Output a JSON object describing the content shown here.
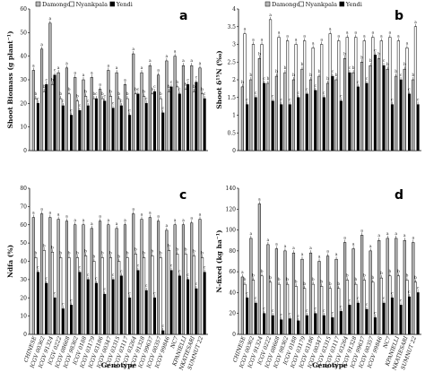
{
  "colors": {
    "Damongo": "#b9b9b9",
    "Nyankpala": "#ffffff",
    "Yendi": "#000000"
  },
  "chart_data": [
    {
      "type": "bar",
      "panel": "a",
      "ylabel": "Shoot Biomass (g plant⁻¹)",
      "xlabel": "",
      "yticks": [
        "0",
        "10",
        "20",
        "30",
        "40",
        "50",
        "60"
      ],
      "ylim": [
        0,
        60
      ],
      "legend": [
        "Damongo",
        "Nyankpala",
        "Yendi"
      ],
      "legend_placement": "top-left",
      "series": [
        {
          "name": "Damongo",
          "values": [
            34,
            43,
            54,
            33,
            35,
            31,
            30,
            31,
            26,
            34,
            33,
            28,
            41,
            33,
            36,
            32,
            38,
            40,
            36,
            36,
            35
          ]
        },
        {
          "name": "Nyankpala",
          "values": [
            22,
            25,
            28,
            22,
            24,
            21,
            23,
            22,
            22,
            23,
            22,
            22,
            24,
            23,
            24,
            22,
            25,
            27,
            26,
            25,
            24
          ]
        },
        {
          "name": "Yendi",
          "values": [
            20,
            28,
            32,
            19,
            15,
            17,
            19,
            22,
            21,
            18,
            19,
            15,
            24,
            20,
            25,
            16,
            27,
            24,
            28,
            29,
            22
          ]
        }
      ],
      "significance": [
        [
          "a",
          "b",
          "c"
        ],
        [
          "a",
          "b",
          "c"
        ],
        [
          "a",
          "b",
          "c"
        ],
        [
          "a",
          "b",
          "c"
        ],
        [
          "a",
          "b",
          "c"
        ],
        [
          "a",
          "b",
          "c"
        ],
        [
          "a",
          "b",
          "c"
        ],
        [
          "a",
          "b",
          "c"
        ],
        [
          "a",
          "b",
          "c"
        ],
        [
          "a",
          "b",
          "c"
        ],
        [
          "a",
          "b",
          "c"
        ],
        [
          "a",
          "b",
          "c"
        ],
        [
          "a",
          "b",
          "c"
        ],
        [
          "a",
          "b",
          "c"
        ],
        [
          "a",
          "b",
          "c"
        ],
        [
          "a",
          "b",
          "c"
        ],
        [
          "a",
          "b",
          "c"
        ],
        [
          "a",
          "b",
          "c"
        ],
        [
          "a",
          "b",
          "c"
        ],
        [
          "a",
          "b",
          "c"
        ],
        [
          "a",
          "b",
          "c"
        ]
      ]
    },
    {
      "type": "bar",
      "panel": "b",
      "ylabel": "Shoot δ¹⁵N (‰)",
      "xlabel": "",
      "yticks": [
        "0",
        "0.5",
        "1",
        "1.5",
        "2",
        "2.5",
        "3",
        "3.5",
        "4"
      ],
      "ylim": [
        0,
        4
      ],
      "legend": [
        "Damongo",
        "Nyankpala",
        "Yendi"
      ],
      "legend_placement": "top",
      "series": [
        {
          "name": "Damongo",
          "values": [
            1.8,
            2.0,
            2.6,
            1.9,
            2.1,
            2.2,
            2.0,
            2.3,
            2.0,
            2.1,
            1.9,
            2.0,
            2.6,
            2.2,
            2.5,
            2.4,
            2.6,
            2.3,
            2.1,
            2.3,
            2.0
          ]
        },
        {
          "name": "Nyankpala",
          "values": [
            3.3,
            3.0,
            3.0,
            3.7,
            3.2,
            3.1,
            3.0,
            3.1,
            2.9,
            3.0,
            3.3,
            3.1,
            3.2,
            3.2,
            3.1,
            3.2,
            3.1,
            3.2,
            3.1,
            2.9,
            3.5
          ]
        },
        {
          "name": "Yendi",
          "values": [
            1.3,
            1.5,
            1.9,
            1.4,
            1.3,
            1.3,
            1.5,
            1.6,
            1.7,
            1.5,
            2.1,
            1.4,
            2.2,
            1.8,
            1.9,
            2.7,
            2.4,
            1.3,
            2.0,
            1.6,
            1.3
          ]
        }
      ],
      "significance": [
        [
          "b",
          "a",
          "c"
        ],
        [
          "b",
          "a",
          "c"
        ],
        [
          "b",
          "a",
          "c"
        ],
        [
          "b",
          "a",
          "c"
        ],
        [
          "b",
          "a",
          "c"
        ],
        [
          "b",
          "a",
          "c"
        ],
        [
          "b",
          "a",
          "c"
        ],
        [
          "b",
          "a",
          "c"
        ],
        [
          "b",
          "a",
          "c"
        ],
        [
          "b",
          "a",
          "c"
        ],
        [
          "b",
          "a",
          "c"
        ],
        [
          "b",
          "a",
          "c"
        ],
        [
          "b",
          "a",
          "c"
        ],
        [
          "b",
          "a",
          "c"
        ],
        [
          "b",
          "a",
          "c"
        ],
        [
          "b",
          "a",
          "c"
        ],
        [
          "b",
          "a",
          "c"
        ],
        [
          "b",
          "a",
          "c"
        ],
        [
          "b",
          "a",
          "c"
        ],
        [
          "b",
          "a",
          "c"
        ],
        [
          "b",
          "a",
          "c"
        ]
      ]
    },
    {
      "type": "bar",
      "panel": "c",
      "ylabel": "Ndfa (%)",
      "xlabel": "Genotype",
      "yticks": [
        "0",
        "10",
        "20",
        "30",
        "40",
        "50",
        "60",
        "70",
        "80"
      ],
      "ylim": [
        0,
        80
      ],
      "legend": [],
      "categories": [
        "CHINESE",
        "ICGV 00362",
        "ICGV 91324",
        "ICGV 0222",
        "ICGV 08668",
        "ICGV 98362",
        "ICGV 0188",
        "ICGV 03179",
        "ICGV 03186",
        "ICGV 00347",
        "ICGV 03315",
        "ICGV 03117",
        "ICGV 03264",
        "ICGV 91328",
        "ICGV 99637",
        "ICGV 00357",
        "ICGV 99846",
        "NC7",
        "KPANIELLI",
        "NKATIESARI",
        "SUMNUT 22"
      ],
      "series": [
        {
          "name": "Damongo",
          "values": [
            64,
            66,
            64,
            63,
            62,
            60,
            60,
            58,
            62,
            60,
            58,
            60,
            66,
            63,
            64,
            62,
            57,
            60,
            60,
            61,
            63
          ]
        },
        {
          "name": "Nyankpala",
          "values": [
            42,
            46,
            45,
            42,
            42,
            42,
            43,
            40,
            42,
            42,
            40,
            42,
            44,
            42,
            43,
            42,
            46,
            44,
            44,
            43,
            42
          ]
        },
        {
          "name": "Yendi",
          "values": [
            34,
            28,
            20,
            14,
            16,
            34,
            30,
            28,
            22,
            30,
            32,
            20,
            35,
            24,
            20,
            2,
            35,
            32,
            30,
            25,
            34
          ]
        }
      ],
      "significance": [
        [
          "a",
          "b",
          "c"
        ],
        [
          "a",
          "b",
          "c"
        ],
        [
          "a",
          "b",
          "c"
        ],
        [
          "a",
          "b",
          "c"
        ],
        [
          "a",
          "b",
          "c"
        ],
        [
          "a",
          "b",
          "c"
        ],
        [
          "a",
          "b",
          "c"
        ],
        [
          "a",
          "b",
          "c"
        ],
        [
          "a",
          "b",
          "c"
        ],
        [
          "a",
          "b",
          "c"
        ],
        [
          "a",
          "b",
          "c"
        ],
        [
          "a",
          "b",
          "c"
        ],
        [
          "a",
          "b",
          "c"
        ],
        [
          "a",
          "b",
          "c"
        ],
        [
          "a",
          "b",
          "c"
        ],
        [
          "a",
          "b",
          "c"
        ],
        [
          "a",
          "b",
          "c"
        ],
        [
          "a",
          "b",
          "c"
        ],
        [
          "a",
          "b",
          "c"
        ],
        [
          "a",
          "b",
          "c"
        ],
        [
          "a",
          "b",
          "c"
        ]
      ]
    },
    {
      "type": "bar",
      "panel": "d",
      "ylabel": "N-fixed (kg ha⁻¹)",
      "xlabel": "Genotype",
      "yticks": [
        "0",
        "20",
        "40",
        "60",
        "80",
        "100",
        "120",
        "140"
      ],
      "ylim": [
        0,
        140
      ],
      "legend": [],
      "categories": [
        "CHINESE",
        "ICGV 00362",
        "ICGV 91324",
        "ICGV 0222",
        "ICGV 08668",
        "ICGV 98362",
        "ICGV 0188",
        "ICGV 03179",
        "ICGV 03186",
        "ICGV 00347",
        "ICGV 03315",
        "ICGV 03117",
        "ICGV 03264",
        "ICGV 91328",
        "ICGV 99637",
        "ICGV 00357",
        "ICGV 99846",
        "NC7",
        "KPANIELLI",
        "NKATIESARI",
        "SUMNUT 22"
      ],
      "series": [
        {
          "name": "Damongo",
          "values": [
            55,
            92,
            125,
            86,
            82,
            80,
            78,
            72,
            78,
            70,
            75,
            72,
            88,
            82,
            95,
            80,
            90,
            92,
            92,
            90,
            88
          ]
        },
        {
          "name": "Nyankpala",
          "values": [
            48,
            52,
            56,
            50,
            48,
            48,
            46,
            44,
            48,
            46,
            44,
            44,
            52,
            48,
            52,
            50,
            54,
            56,
            56,
            52,
            50
          ]
        },
        {
          "name": "Yendi",
          "values": [
            35,
            30,
            20,
            18,
            14,
            15,
            13,
            18,
            20,
            18,
            16,
            22,
            28,
            30,
            24,
            16,
            30,
            35,
            28,
            36,
            40
          ]
        }
      ],
      "significance": [
        [
          "a",
          "b",
          "c"
        ],
        [
          "a",
          "b",
          "c"
        ],
        [
          "a",
          "b",
          "c"
        ],
        [
          "a",
          "b",
          "c"
        ],
        [
          "a",
          "b",
          "c"
        ],
        [
          "a",
          "b",
          "c"
        ],
        [
          "a",
          "b",
          "c"
        ],
        [
          "a",
          "b",
          "c"
        ],
        [
          "a",
          "b",
          "c"
        ],
        [
          "a",
          "b",
          "c"
        ],
        [
          "a",
          "b",
          "c"
        ],
        [
          "a",
          "b",
          "c"
        ],
        [
          "a",
          "b",
          "c"
        ],
        [
          "a",
          "b",
          "c"
        ],
        [
          "a",
          "b",
          "c"
        ],
        [
          "a",
          "b",
          "c"
        ],
        [
          "a",
          "b",
          "c"
        ],
        [
          "a",
          "b",
          "c"
        ],
        [
          "a",
          "b",
          "c"
        ],
        [
          "a",
          "b",
          "c"
        ],
        [
          "a",
          "b",
          "c"
        ]
      ]
    }
  ]
}
